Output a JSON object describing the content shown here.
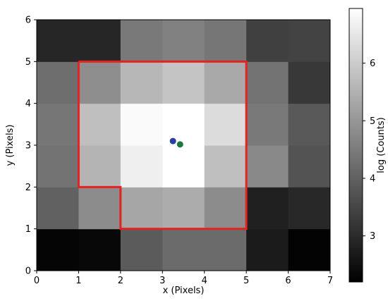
{
  "chart_data": {
    "type": "heatmap",
    "xlabel": "x (Pixels)",
    "ylabel": "y (Pixels)",
    "xlim": [
      0,
      7
    ],
    "ylim": [
      0,
      6
    ],
    "xticks": [
      "0",
      "1",
      "2",
      "3",
      "4",
      "5",
      "6",
      "7"
    ],
    "yticks": [
      "0",
      "1",
      "2",
      "3",
      "4",
      "5",
      "6"
    ],
    "colorbar": {
      "label": "log (Counts)",
      "range": [
        2.2,
        6.95
      ],
      "ticks": [
        "3",
        "4",
        "5",
        "6"
      ],
      "tick_values": [
        3,
        4,
        5,
        6
      ],
      "colormap": "gray"
    },
    "grid_values_log_counts": [
      [
        2.3,
        2.35,
        3.9,
        4.2,
        4.2,
        2.7,
        2.25
      ],
      [
        4.0,
        4.8,
        5.3,
        5.4,
        4.8,
        2.8,
        2.95
      ],
      [
        4.35,
        5.55,
        6.65,
        6.95,
        5.75,
        4.75,
        3.75
      ],
      [
        4.4,
        5.75,
        6.85,
        6.95,
        6.3,
        4.45,
        3.85
      ],
      [
        4.25,
        4.85,
        5.6,
        5.85,
        5.35,
        4.35,
        3.25
      ],
      [
        2.9,
        2.9,
        4.45,
        4.6,
        4.4,
        3.4,
        3.45
      ]
    ],
    "aperture_outline": [
      [
        1,
        5
      ],
      [
        5,
        5
      ],
      [
        5,
        1
      ],
      [
        2,
        1
      ],
      [
        2,
        2
      ],
      [
        1,
        2
      ],
      [
        1,
        5
      ]
    ],
    "points": [
      {
        "x": 3.25,
        "y": 3.1,
        "color": "#2a3f9b"
      },
      {
        "x": 3.42,
        "y": 3.02,
        "color": "#1a7a3a"
      }
    ],
    "outline_color": "#e32222"
  }
}
